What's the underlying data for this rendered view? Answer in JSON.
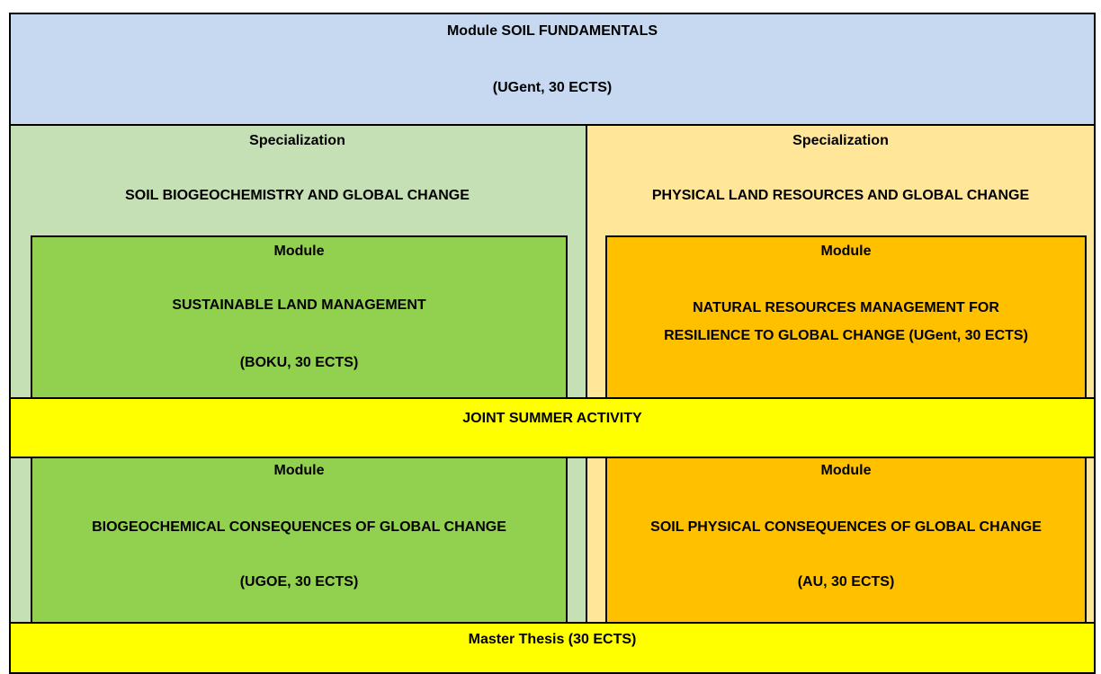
{
  "fundamentals": {
    "title": "Module SOIL FUNDAMENTALS",
    "subtitle": "(UGent, 30 ECTS)"
  },
  "specializations": [
    {
      "label": "Specialization",
      "name": "SOIL BIOGEOCHEMISTRY AND GLOBAL CHANGE"
    },
    {
      "label": "Specialization",
      "name": "PHYSICAL LAND RESOURCES AND GLOBAL CHANGE"
    }
  ],
  "modules": [
    {
      "label": "Module",
      "lines": [
        "SUSTAINABLE LAND MANAGEMENT",
        "(BOKU, 30 ECTS)"
      ]
    },
    {
      "label": "Module",
      "lines": [
        "NATURAL RESOURCES MANAGEMENT FOR",
        "RESILIENCE TO GLOBAL CHANGE (UGent, 30 ECTS)"
      ]
    },
    {
      "label": "Module",
      "lines": [
        "BIOGEOCHEMICAL CONSEQUENCES OF GLOBAL CHANGE",
        "(UGOE, 30 ECTS)"
      ]
    },
    {
      "label": "Module",
      "lines": [
        "SOIL PHYSICAL CONSEQUENCES OF GLOBAL CHANGE",
        "(AU, 30 ECTS)"
      ]
    }
  ],
  "summer": "JOINT SUMMER ACTIVITY",
  "thesis": "Master Thesis (30 ECTS)"
}
